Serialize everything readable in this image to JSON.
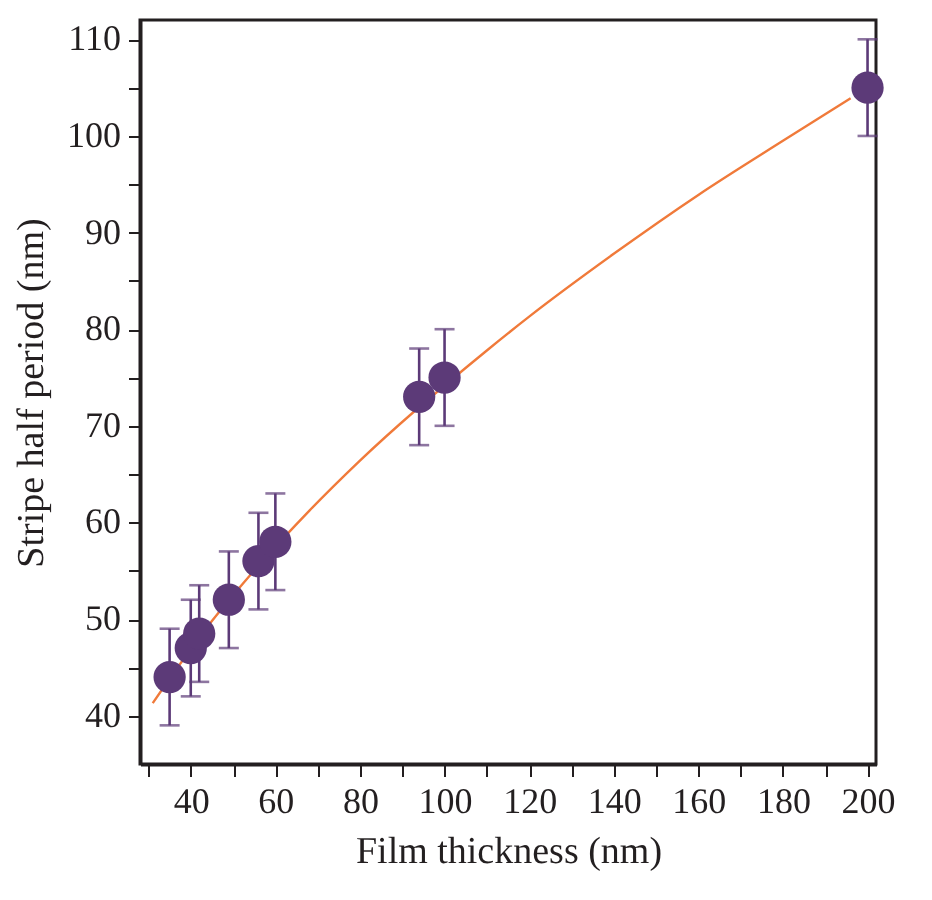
{
  "chart_data": {
    "type": "scatter",
    "xlabel": "Film thickness (nm)",
    "ylabel": "Stripe half period (nm)",
    "xlim": [
      28,
      202
    ],
    "ylim": [
      35,
      112
    ],
    "xticks": [
      {
        "value": 30,
        "label": null
      },
      40,
      {
        "value": 50,
        "label": null
      },
      60,
      {
        "value": 70,
        "label": null
      },
      80,
      {
        "value": 90,
        "label": null
      },
      100,
      {
        "value": 110,
        "label": null
      },
      120,
      {
        "value": 130,
        "label": null
      },
      140,
      {
        "value": 150,
        "label": null
      },
      160,
      {
        "value": 170,
        "label": null
      },
      180,
      {
        "value": 190,
        "label": null
      },
      200
    ],
    "yticks": [
      40,
      {
        "value": 45,
        "label": null
      },
      50,
      {
        "value": 55,
        "label": null
      },
      60,
      {
        "value": 65,
        "label": null
      },
      70,
      {
        "value": 75,
        "label": null
      },
      80,
      {
        "value": 85,
        "label": null
      },
      90,
      {
        "value": 95,
        "label": null
      },
      100,
      {
        "value": 105,
        "label": null
      },
      110
    ],
    "marker": "circle",
    "series": [
      {
        "type": "line",
        "color": "#f07a3a",
        "marker": "none",
        "line_style": "solid",
        "x": [
          31,
          45,
          52,
          68,
          80,
          110,
          120,
          140,
          160,
          180,
          196
        ],
        "values": [
          41.3,
          49.8,
          53.5,
          61.2,
          66.4,
          77.8,
          81.3,
          87.8,
          93.9,
          99.5,
          103.9
        ]
      },
      {
        "color": "#5c3a78",
        "x": [
          35,
          40,
          42,
          49,
          56,
          60,
          94,
          100,
          200
        ],
        "values": [
          44,
          47,
          48.5,
          52,
          56,
          58,
          73,
          75,
          105
        ],
        "errors": [
          5,
          5,
          5,
          5,
          5,
          5,
          5,
          5,
          5
        ]
      }
    ]
  }
}
